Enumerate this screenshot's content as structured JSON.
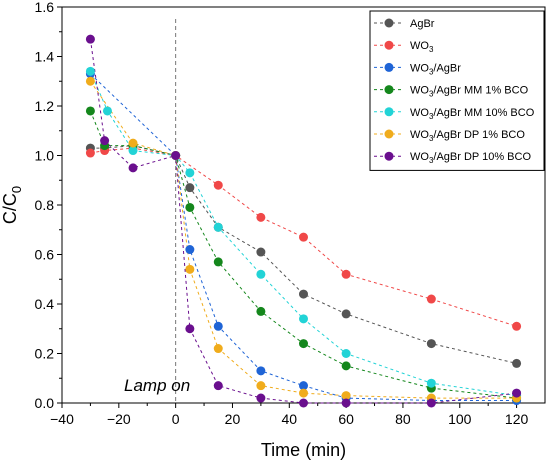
{
  "chart_data": {
    "type": "scatter",
    "xlabel": "Time (min)",
    "ylabel": "C/C",
    "ylabel_sub": "0",
    "xlim": [
      -40,
      130
    ],
    "ylim": [
      0,
      1.6
    ],
    "xticks": [
      -40,
      -20,
      0,
      20,
      40,
      60,
      80,
      100,
      120
    ],
    "xtick_labels": [
      "−40",
      "−20",
      "0",
      "20",
      "40",
      "60",
      "80",
      "100",
      "120"
    ],
    "yticks": [
      0.0,
      0.2,
      0.4,
      0.6,
      0.8,
      1.0,
      1.2,
      1.4,
      1.6
    ],
    "ytick_labels": [
      "0.0",
      "0.2",
      "0.4",
      "0.6",
      "0.8",
      "1.0",
      "1.2",
      "1.4",
      "1.6"
    ],
    "grid": false,
    "legend_position": "top-right",
    "lamp_on_time": 0,
    "annotation": "Lamp on",
    "series": [
      {
        "name": "AgBr",
        "name_parts": [
          "AgBr"
        ],
        "color": "#555555",
        "x": [
          -30,
          -25,
          -15,
          0,
          5,
          15,
          30,
          45,
          60,
          90,
          120
        ],
        "y": [
          1.03,
          1.03,
          1.04,
          1.0,
          0.87,
          0.71,
          0.61,
          0.44,
          0.36,
          0.24,
          0.16
        ]
      },
      {
        "name": "WO3",
        "name_parts": [
          "WO",
          "3",
          ""
        ],
        "color": "#f04848",
        "x": [
          -30,
          -25,
          -15,
          0,
          15,
          30,
          45,
          60,
          90,
          120
        ],
        "y": [
          1.01,
          1.02,
          1.03,
          1.0,
          0.88,
          0.75,
          0.67,
          0.52,
          0.42,
          0.31
        ]
      },
      {
        "name": "WO3/AgBr",
        "name_parts": [
          "WO",
          "3",
          "/AgBr"
        ],
        "color": "#1f64d6",
        "x": [
          -30,
          0,
          5,
          15,
          30,
          45,
          60,
          90,
          120
        ],
        "y": [
          1.33,
          1.0,
          0.62,
          0.31,
          0.13,
          0.07,
          0.02,
          0.01,
          0.01
        ]
      },
      {
        "name": "WO3/AgBr MM 1% BCO",
        "name_parts": [
          "WO",
          "3",
          "/AgBr MM 1% BCO"
        ],
        "color": "#14871c",
        "x": [
          -30,
          -25,
          -15,
          0,
          5,
          15,
          30,
          45,
          60,
          90,
          120
        ],
        "y": [
          1.18,
          1.04,
          1.04,
          1.0,
          0.79,
          0.57,
          0.37,
          0.24,
          0.15,
          0.06,
          0.02
        ]
      },
      {
        "name": "WO3/AgBr MM 10% BCO",
        "name_parts": [
          "WO",
          "3",
          "/AgBr MM 10% BCO"
        ],
        "color": "#22d3d6",
        "x": [
          -30,
          -24,
          -15,
          0,
          5,
          15,
          30,
          45,
          60,
          90,
          120
        ],
        "y": [
          1.34,
          1.18,
          1.02,
          1.0,
          0.93,
          0.71,
          0.52,
          0.34,
          0.2,
          0.08,
          0.03
        ]
      },
      {
        "name": "WO3/AgBr DP 1% BCO",
        "name_parts": [
          "WO",
          "3",
          "/AgBr DP 1% BCO"
        ],
        "color": "#f0ac1c",
        "x": [
          -30,
          -15,
          0,
          5,
          15,
          30,
          45,
          60,
          90,
          120
        ],
        "y": [
          1.3,
          1.05,
          1.0,
          0.54,
          0.22,
          0.07,
          0.04,
          0.03,
          0.02,
          0.02
        ]
      },
      {
        "name": "WO3/AgBr DP 10% BCO",
        "name_parts": [
          "WO",
          "3",
          "/AgBr DP 10% BCO"
        ],
        "color": "#6a0f8e",
        "x": [
          -30,
          -25,
          -15,
          0,
          5,
          15,
          30,
          45,
          60,
          90,
          120
        ],
        "y": [
          1.47,
          1.06,
          0.95,
          1.0,
          0.3,
          0.07,
          0.02,
          0.0,
          0.0,
          0.0,
          0.04
        ]
      }
    ]
  }
}
